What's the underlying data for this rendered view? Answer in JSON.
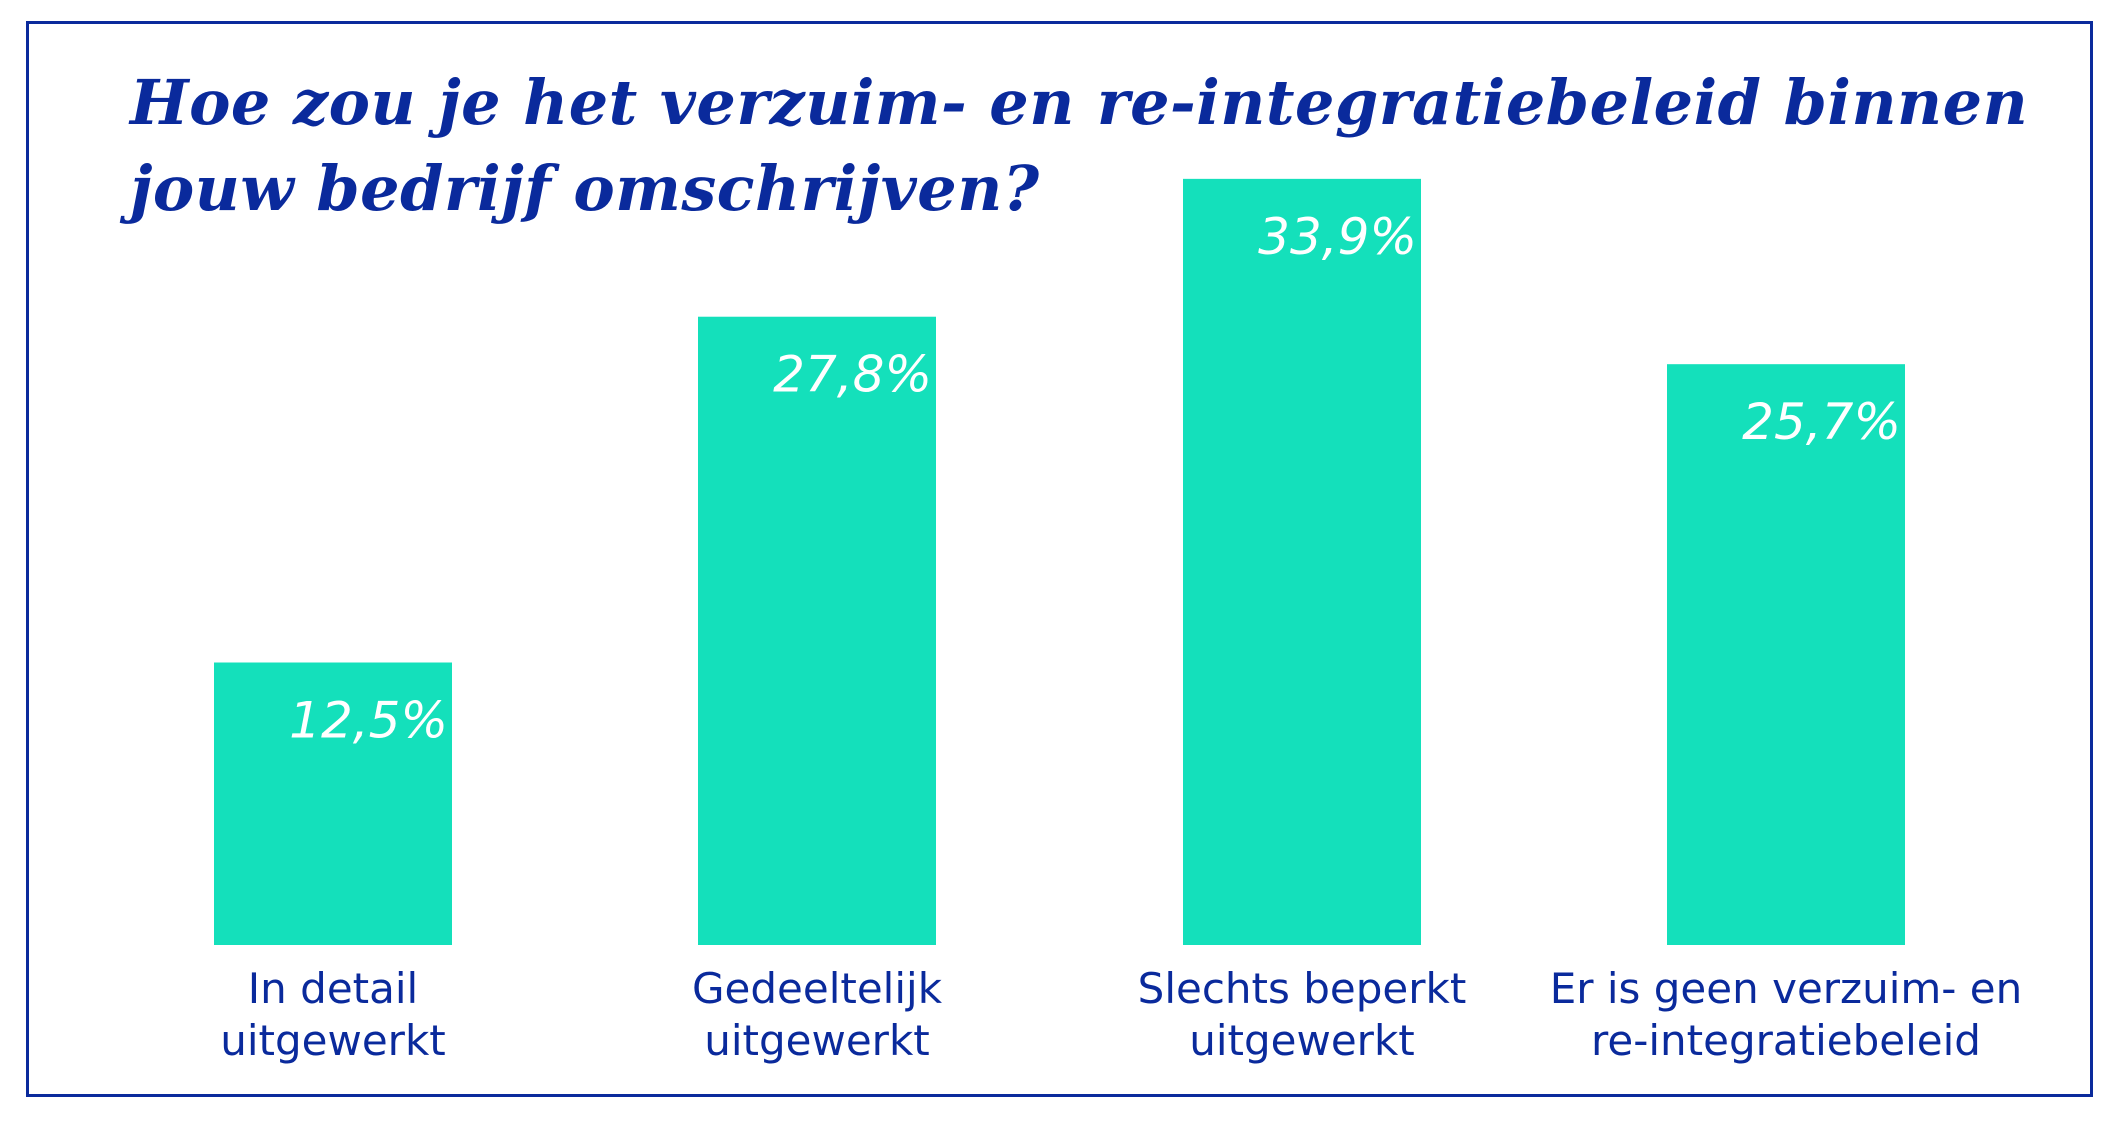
{
  "chart_data": {
    "type": "bar",
    "title_lines": [
      "Hoe zou je het verzuim- en re-integratiebeleid binnen",
      "jouw bedrijf omschrijven?"
    ],
    "categories": [
      [
        "In detail",
        "uitgewerkt"
      ],
      [
        "Gedeeltelijk",
        "uitgewerkt"
      ],
      [
        "Slechts beperkt",
        "uitgewerkt"
      ],
      [
        "Er is geen verzuim- en",
        "re-integratiebeleid"
      ]
    ],
    "values": [
      12.5,
      27.8,
      33.9,
      25.7
    ],
    "value_labels": [
      "12,5%",
      "27,8%",
      "33,9%",
      "25,7%"
    ],
    "unit": "%",
    "ylim": [
      0,
      40
    ],
    "xlabel": "",
    "ylabel": "",
    "grid": false,
    "colors": {
      "bar": "#14e0bb",
      "text": "#0a2a9c",
      "value_label": "#ffffff"
    }
  }
}
